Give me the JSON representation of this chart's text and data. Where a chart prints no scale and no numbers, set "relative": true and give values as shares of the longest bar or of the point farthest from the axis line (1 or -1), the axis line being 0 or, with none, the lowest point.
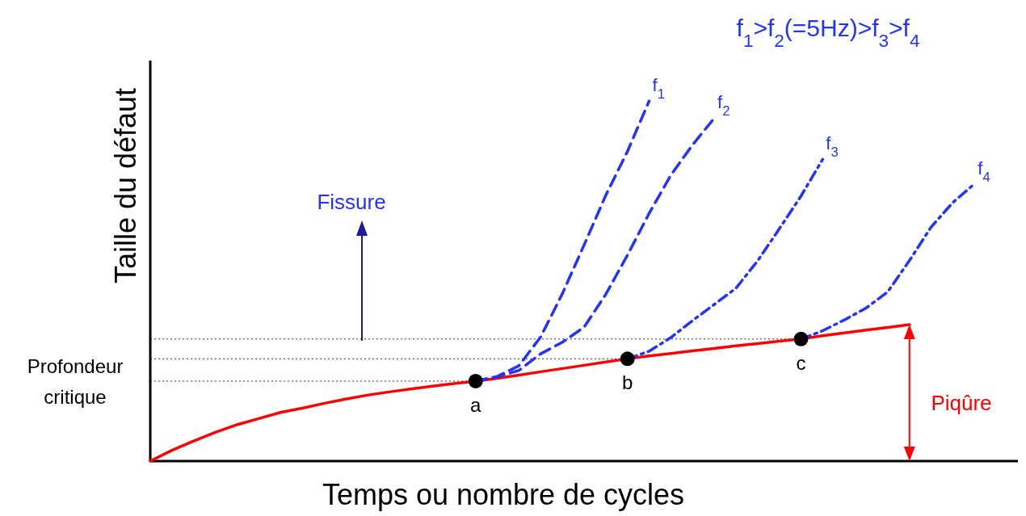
{
  "chart_data": {
    "type": "line",
    "relative": true,
    "title": "f$_{1}$>f$_{2}$(=5Hz)>f$_{3}$>f$_{4}$",
    "xlabel": "Temps ou nombre de cycles",
    "ylabel": "Taille du défaut",
    "legend": false,
    "grid": false,
    "categories": [
      null,
      null,
      null,
      null,
      null,
      null,
      null,
      null,
      null,
      null,
      null,
      null,
      null,
      null,
      null,
      null,
      null,
      null,
      null,
      null,
      null,
      null,
      null,
      null,
      null,
      null,
      null,
      null,
      null,
      null,
      null,
      null,
      null,
      null,
      null,
      null,
      null,
      null,
      null,
      null,
      null
    ],
    "series": [
      {
        "color": "#ff0000",
        "line_style": "solid",
        "values": [
          0,
          0.03,
          0.056,
          0.08,
          0.101,
          0.118,
          0.135,
          0.147,
          0.16,
          0.172,
          0.183,
          0.192,
          0.2,
          0.208,
          0.215,
          0.222,
          0.23,
          0.239,
          0.248,
          0.257,
          0.266,
          0.275,
          0.284,
          0.292,
          0.299,
          0.306,
          0.313,
          0.32,
          0.326,
          0.333,
          0.339,
          0.348,
          0.356,
          0.364,
          0.371,
          0.379,
          null,
          null,
          null,
          null,
          null
        ]
      },
      {
        "name": "f$_{1}$",
        "color": "#2233ff",
        "line_style": "dashed",
        "values": [
          null,
          null,
          null,
          null,
          null,
          null,
          null,
          null,
          null,
          null,
          null,
          null,
          null,
          null,
          null,
          0.222,
          0.235,
          0.265,
          0.345,
          0.465,
          0.6,
          0.738,
          0.86,
          1.0,
          null,
          null,
          null,
          null,
          null,
          null,
          null,
          null,
          null,
          null,
          null,
          null,
          null,
          null,
          null,
          null,
          null
        ]
      },
      {
        "name": "f$_{2}$",
        "color": "#2233ff",
        "line_style": "dashed",
        "values": [
          null,
          null,
          null,
          null,
          null,
          null,
          null,
          null,
          null,
          null,
          null,
          null,
          null,
          null,
          null,
          0.222,
          0.234,
          0.252,
          0.298,
          0.33,
          0.372,
          0.463,
          0.572,
          0.688,
          0.794,
          0.878,
          0.952,
          null,
          null,
          null,
          null,
          null,
          null,
          null,
          null,
          null,
          null,
          null,
          null,
          null,
          null
        ]
      },
      {
        "name": "f$_{3}$",
        "color": "#2233ff",
        "line_style": "dashdot",
        "values": [
          null,
          null,
          null,
          null,
          null,
          null,
          null,
          null,
          null,
          null,
          null,
          null,
          null,
          null,
          null,
          null,
          null,
          null,
          null,
          null,
          null,
          null,
          0.284,
          0.305,
          0.343,
          0.39,
          0.435,
          0.48,
          0.556,
          0.645,
          0.736,
          0.838,
          null,
          null,
          null,
          null,
          null,
          null,
          null,
          null,
          null
        ]
      },
      {
        "name": "f$_{4}$",
        "color": "#2233ff",
        "line_style": "dashdot",
        "values": [
          null,
          null,
          null,
          null,
          null,
          null,
          null,
          null,
          null,
          null,
          null,
          null,
          null,
          null,
          null,
          null,
          null,
          null,
          null,
          null,
          null,
          null,
          null,
          null,
          null,
          null,
          null,
          null,
          null,
          null,
          0.339,
          0.362,
          0.392,
          0.425,
          0.47,
          0.557,
          0.65,
          0.718,
          0.77,
          null,
          null
        ]
      }
    ],
    "ref_lines": [
      {
        "axis": "y",
        "value": 0.339,
        "color": "#000000",
        "line_style": "dotted"
      },
      {
        "axis": "y",
        "value": 0.284,
        "color": "#000000",
        "line_style": "dotted"
      },
      {
        "axis": "y",
        "value": 0.222,
        "color": "#000000",
        "line_style": "dotted"
      }
    ],
    "annotations": [
      {
        "text": "a",
        "y": 0.222
      },
      {
        "text": "b",
        "y": 0.284
      },
      {
        "text": "c",
        "y": 0.339
      },
      "Profondeur critique",
      "Fissure",
      "Piqûre"
    ]
  }
}
